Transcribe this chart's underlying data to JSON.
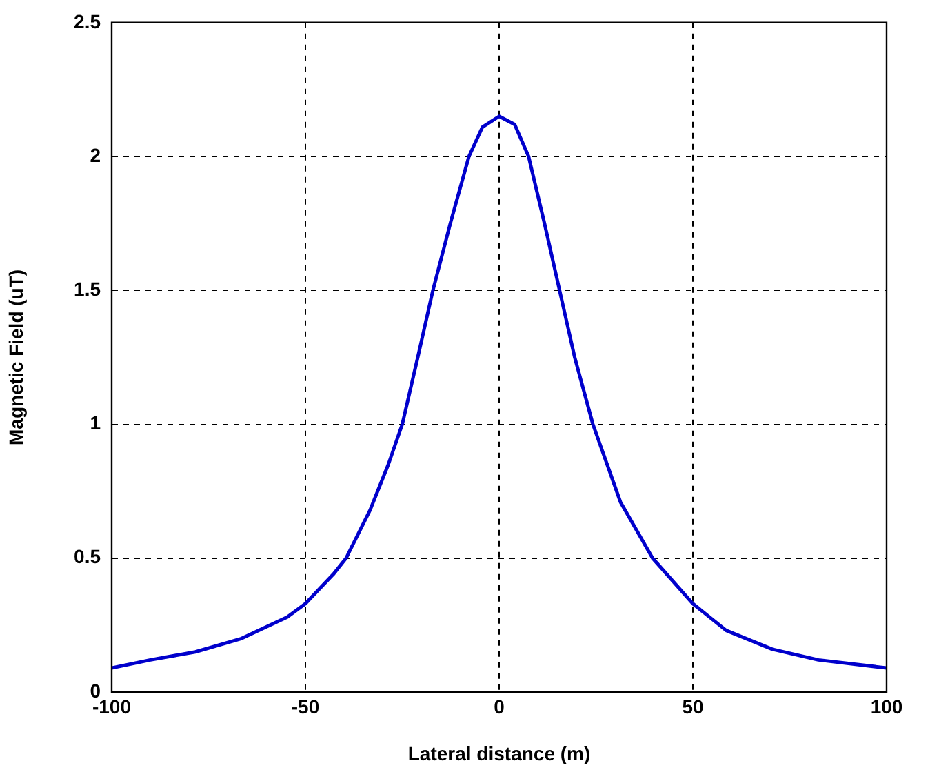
{
  "chart_data": {
    "type": "line",
    "xlabel": "Lateral distance (m)",
    "ylabel": "Magnetic Field (uT)",
    "xlim": [
      -100,
      100
    ],
    "xticks": [
      -100,
      -50,
      0,
      50,
      100
    ],
    "ylim": [
      0,
      2.5
    ],
    "yticks": [
      0,
      0.5,
      1,
      1.5,
      2,
      2.5
    ],
    "grid": true,
    "legend": false,
    "marker": "none",
    "line_style": "solid",
    "series": [
      {
        "color": "#0000cc",
        "x": [
          -100,
          -90,
          -78.4,
          -66.5,
          -54.7,
          -50,
          -42.8,
          -39.5,
          -33.3,
          -28.6,
          -25,
          -21,
          -17.1,
          -12.6,
          -7.8,
          -4.3,
          0,
          4,
          7.6,
          11.7,
          15.6,
          19.5,
          24.2,
          31.3,
          39.6,
          50,
          58.6,
          70.5,
          82.4,
          100
        ],
        "values": [
          0.09,
          0.12,
          0.15,
          0.2,
          0.28,
          0.33,
          0.44,
          0.5,
          0.68,
          0.85,
          1,
          1.25,
          1.5,
          1.75,
          2,
          2.11,
          2.15,
          2.12,
          2,
          1.75,
          1.5,
          1.25,
          1,
          0.71,
          0.5,
          0.33,
          0.23,
          0.16,
          0.12,
          0.09
        ]
      }
    ]
  }
}
